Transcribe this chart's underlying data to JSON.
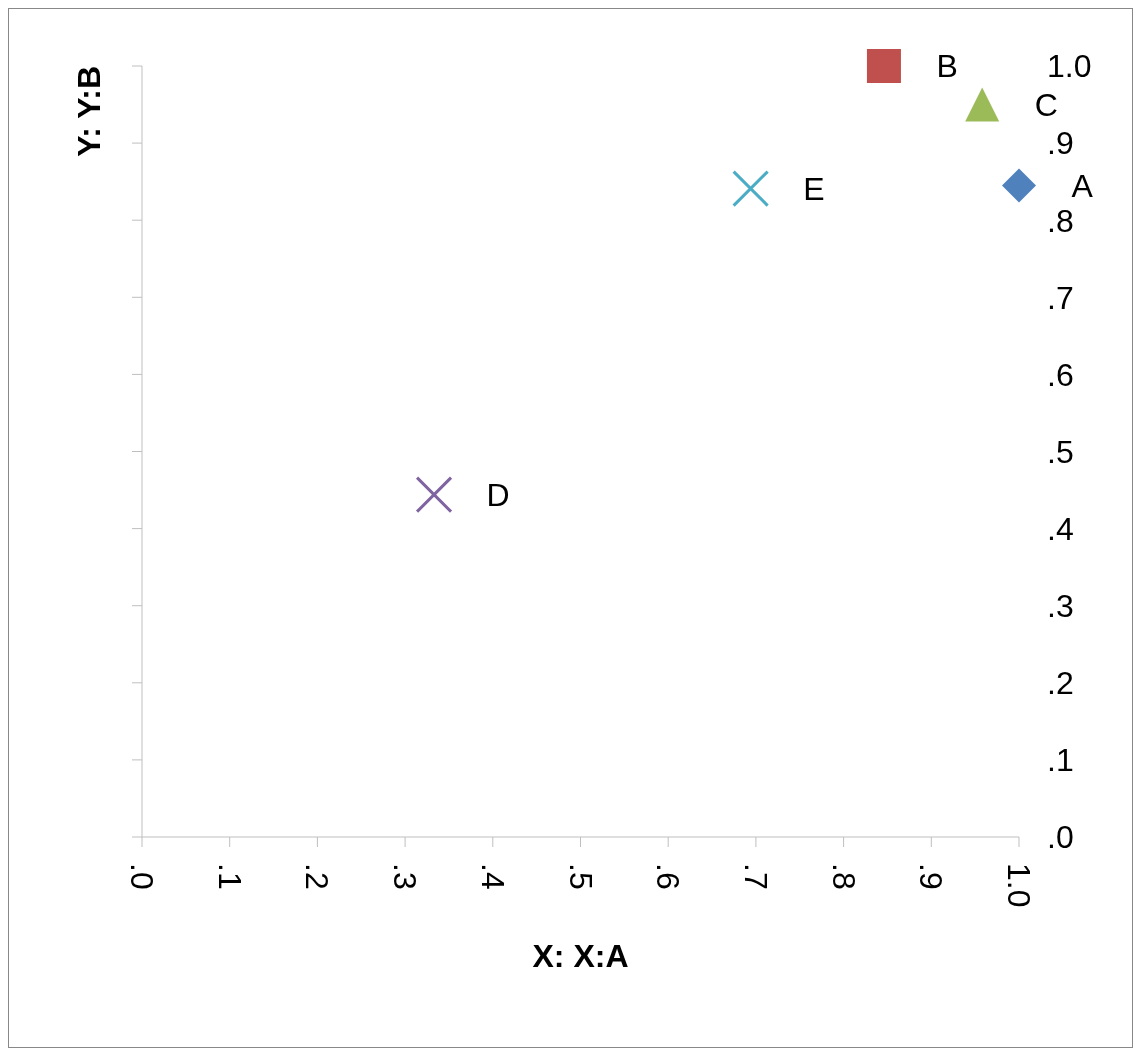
{
  "chart_data": {
    "type": "scatter",
    "xlabel": "X: X:A",
    "ylabel": "Y: Y:B",
    "series": [
      {
        "name": "A",
        "color": "#4f81bd",
        "marker": "diamond",
        "x": [
          1.0
        ],
        "values": [
          0.845
        ]
      },
      {
        "name": "B",
        "color": "#c0504d",
        "marker": "square",
        "x": [
          0.846
        ],
        "values": [
          1.0
        ]
      },
      {
        "name": "C",
        "color": "#9bbb59",
        "marker": "triangle",
        "x": [
          0.958
        ],
        "values": [
          0.95
        ]
      },
      {
        "name": "D",
        "color": "#8064a2",
        "marker": "cross",
        "x": [
          0.333
        ],
        "values": [
          0.444
        ]
      },
      {
        "name": "E",
        "color": "#4bacc6",
        "marker": "cross",
        "x": [
          0.694
        ],
        "values": [
          0.841
        ]
      }
    ],
    "xlim": [
      0,
      1
    ],
    "ylim": [
      0,
      1
    ],
    "xticks": [
      {
        "value": 0,
        "label": ".0"
      },
      {
        "value": 0.1,
        "label": ".1"
      },
      {
        "value": 0.2,
        "label": ".2"
      },
      {
        "value": 0.3,
        "label": ".3"
      },
      {
        "value": 0.4,
        "label": ".4"
      },
      {
        "value": 0.5,
        "label": ".5"
      },
      {
        "value": 0.6,
        "label": ".6"
      },
      {
        "value": 0.7,
        "label": ".7"
      },
      {
        "value": 0.8,
        "label": ".8"
      },
      {
        "value": 0.9,
        "label": ".9"
      },
      {
        "value": 1,
        "label": "1.0"
      }
    ],
    "yticks": [
      {
        "value": 0,
        "label": ".0"
      },
      {
        "value": 0.1,
        "label": ".1"
      },
      {
        "value": 0.2,
        "label": ".2"
      },
      {
        "value": 0.3,
        "label": ".3"
      },
      {
        "value": 0.4,
        "label": ".4"
      },
      {
        "value": 0.5,
        "label": ".5"
      },
      {
        "value": 0.6,
        "label": ".6"
      },
      {
        "value": 0.7,
        "label": ".7"
      },
      {
        "value": 0.8,
        "label": ".8"
      },
      {
        "value": 0.9,
        "label": ".9"
      },
      {
        "value": 1,
        "label": "1.0"
      }
    ],
    "grid": false
  }
}
